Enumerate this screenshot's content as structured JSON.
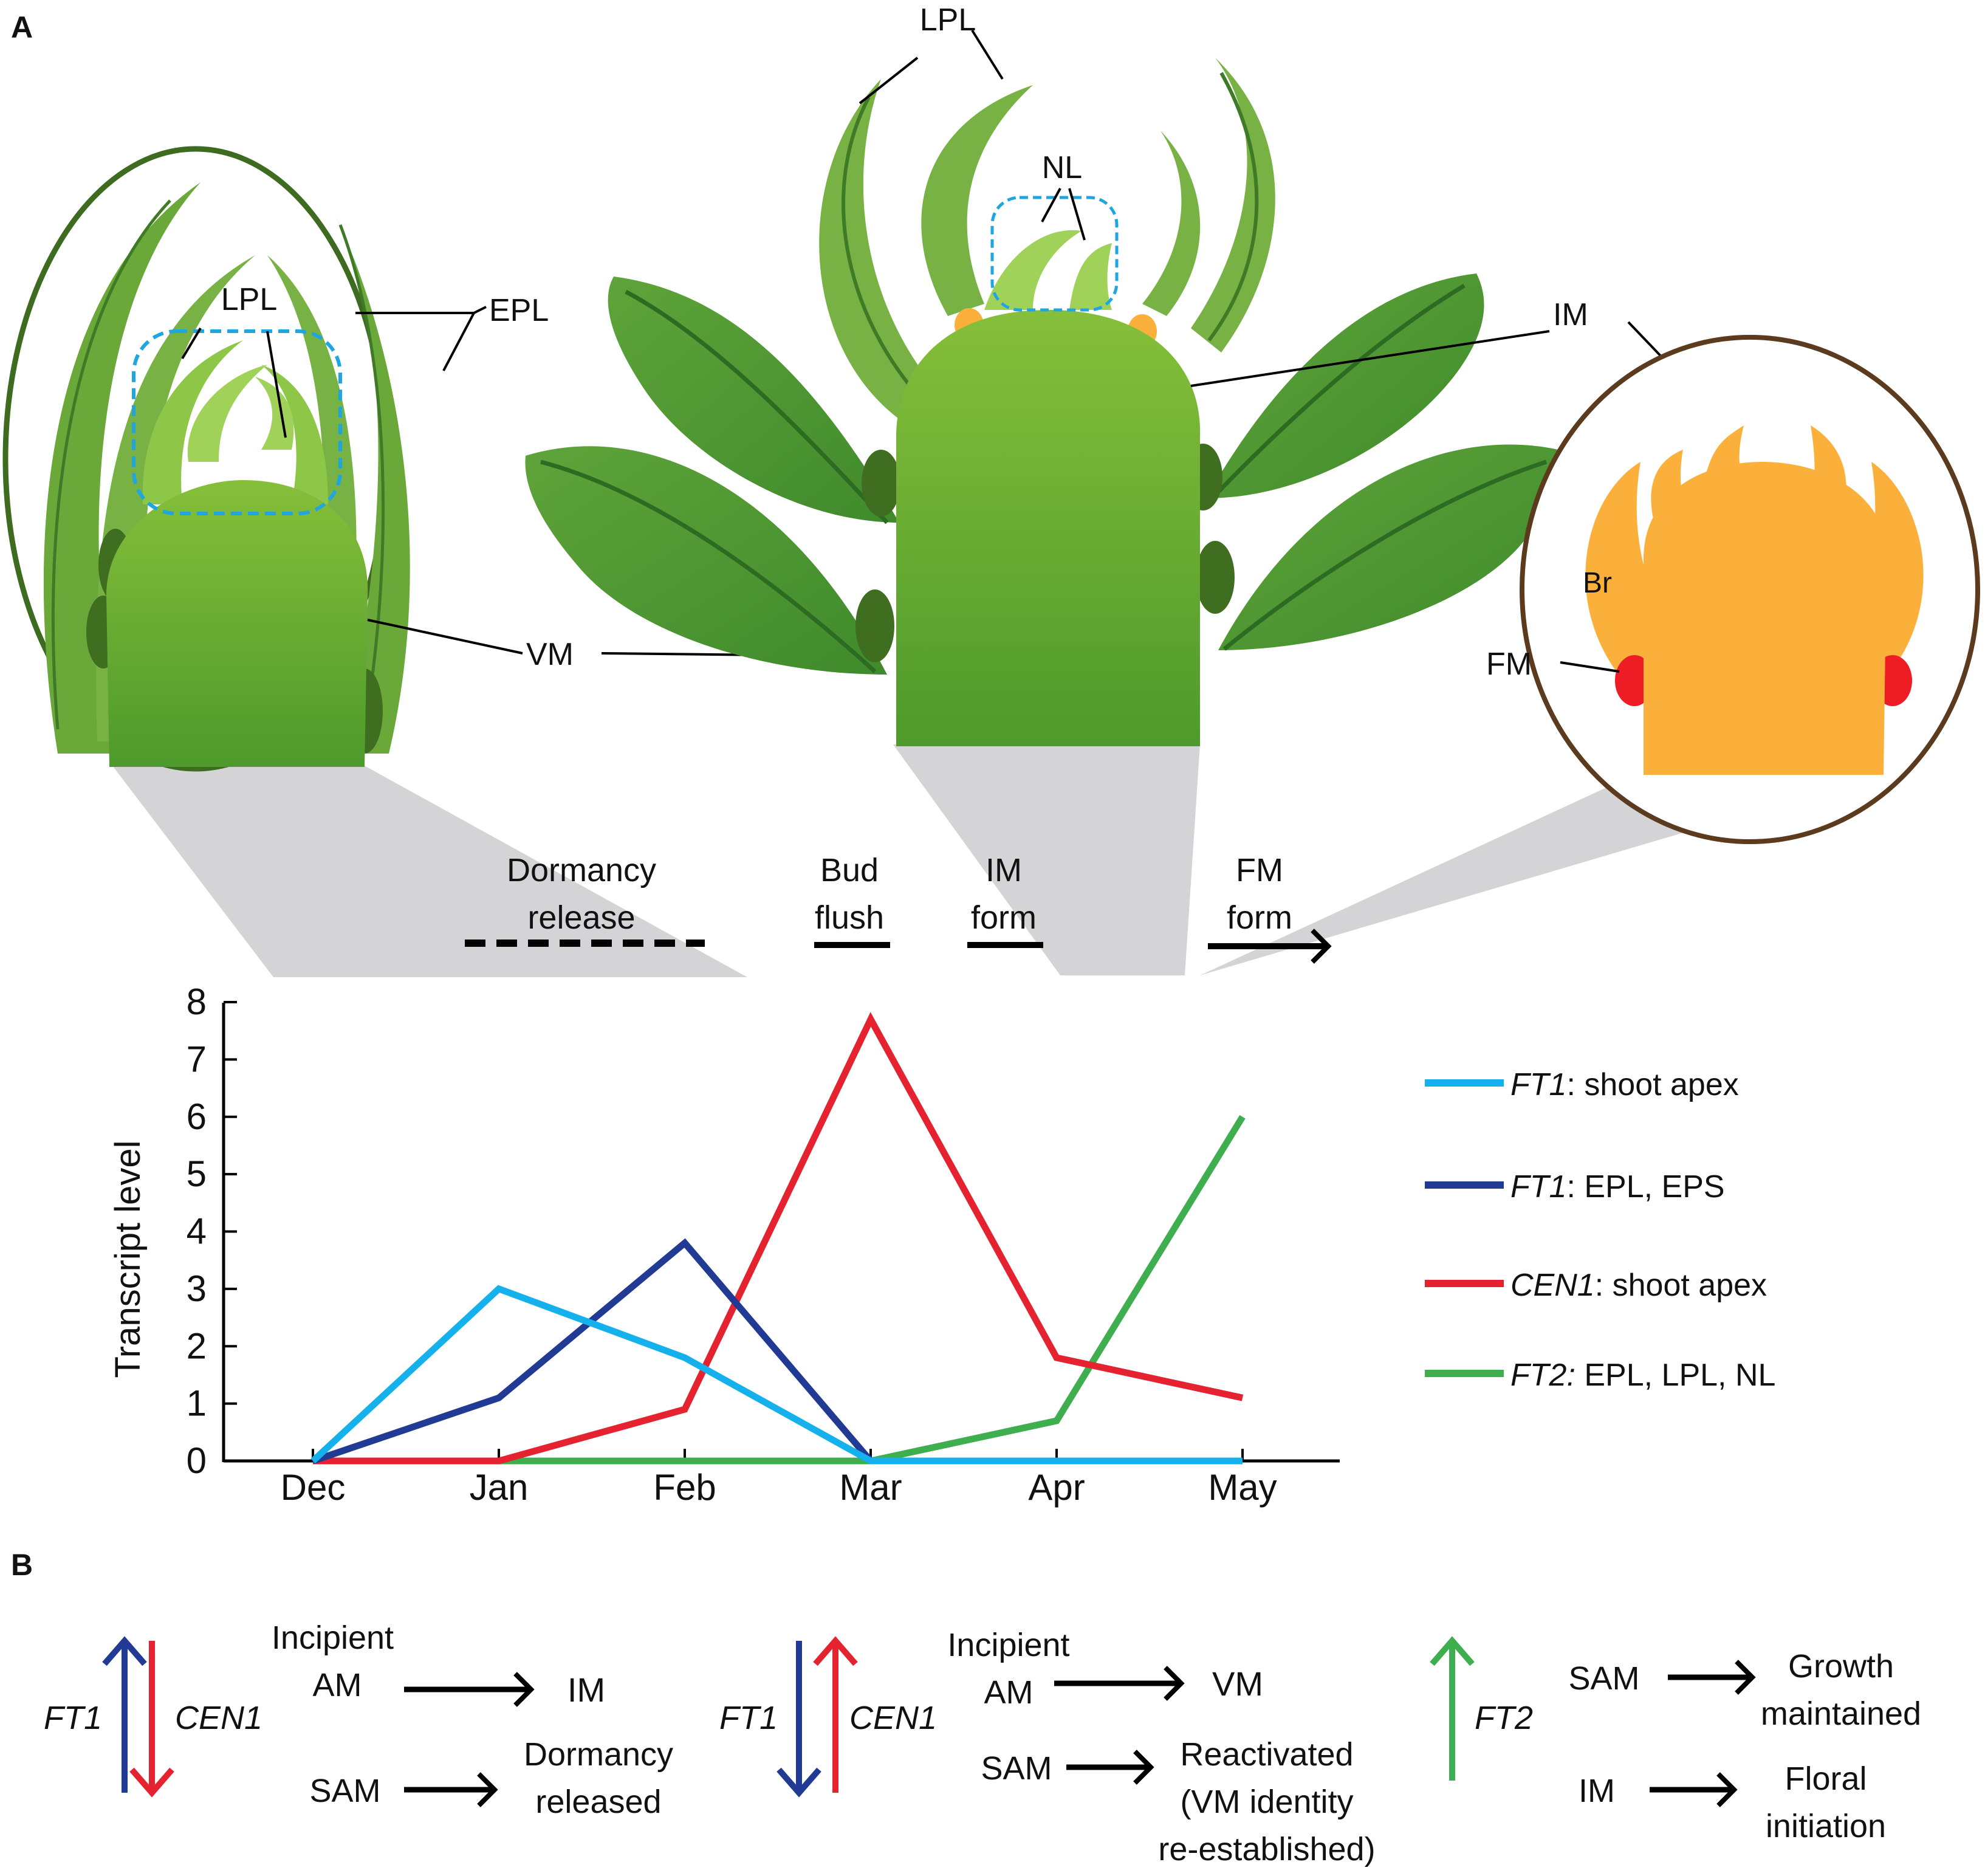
{
  "panels": {
    "a": "A",
    "b": "B"
  },
  "illustration": {
    "left_bud": {
      "lpl": "LPL",
      "epl": "EPL",
      "vm": "VM"
    },
    "middle_shoot": {
      "lpl": "LPL",
      "nl": "NL",
      "im": "IM"
    },
    "right_bud": {
      "br": "Br",
      "fm": "FM"
    }
  },
  "timeline": {
    "dormancy": "Dormancy release",
    "bud_flush": "Bud flush",
    "im_form": "IM form",
    "fm_form": "FM form"
  },
  "colors": {
    "ft1_apex": "#14b1ec",
    "ft1_epl": "#213b94",
    "cen1": "#e52330",
    "ft2": "#3fae4e",
    "leaf_light": "#7ab445",
    "leaf_dark": "#4a8a2e",
    "orange": "#fbb03b",
    "shadow": "#d4d4d6"
  },
  "chart_data": {
    "type": "line",
    "categories": [
      "Dec",
      "Jan",
      "Feb",
      "Mar",
      "Apr",
      "May"
    ],
    "ylabel": "Transcript level",
    "xlabel": "",
    "ylim": [
      0,
      8
    ],
    "yticks": [
      "0",
      "1",
      "2",
      "3",
      "4",
      "5",
      "6",
      "7",
      "8"
    ],
    "series": [
      {
        "name": "FT1",
        "suffix": ": shoot apex",
        "color": "#14b1ec",
        "values": [
          0,
          3.0,
          1.8,
          0,
          0,
          0
        ]
      },
      {
        "name": "FT1",
        "suffix": ": EPL, EPS",
        "color": "#213b94",
        "values": [
          0,
          1.1,
          3.8,
          0,
          null,
          null
        ]
      },
      {
        "name": "CEN1",
        "suffix": ": shoot apex",
        "color": "#e52330",
        "values": [
          0,
          0,
          0.9,
          7.7,
          1.8,
          1.1
        ]
      },
      {
        "name": "FT2:",
        "suffix": " EPL, LPL, NL",
        "color": "#3fae4e",
        "values": [
          null,
          0,
          0,
          0,
          0.7,
          6.0
        ]
      }
    ]
  },
  "panel_b": {
    "group1": {
      "gene_left": "FT1",
      "gene_right": "CEN1",
      "row1_src": "Incipient AM",
      "row1_dst": "IM",
      "row2_src": "SAM",
      "row2_dst": "Dormancy released"
    },
    "group2": {
      "gene_left": "FT1",
      "gene_right": "CEN1",
      "row1_src": "Incipient AM",
      "row1_dst": "VM",
      "row2_src": "SAM",
      "row2_dst": "Reactivated (VM identity re-established)"
    },
    "group3": {
      "gene": "FT2",
      "row1_src": "SAM",
      "row1_dst": "Growth maintained",
      "row2_src": "IM",
      "row2_dst": "Floral initiation"
    }
  }
}
